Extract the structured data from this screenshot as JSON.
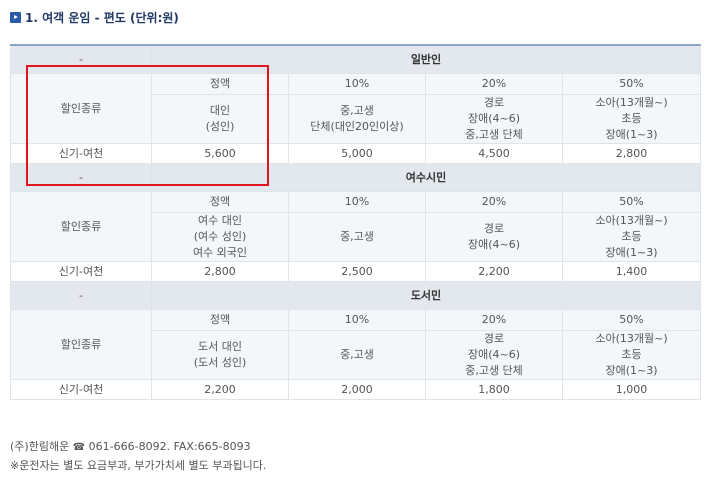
{
  "title": "1. 여객 운임 - 편도 (단위:원)",
  "route_label": "신기-여천",
  "kind_label": "할인종류",
  "dash": "-",
  "sections": [
    {
      "group": "일반인",
      "rates": [
        "정액",
        "10%",
        "20%",
        "50%"
      ],
      "kinds": [
        [
          "대인",
          "(성인)"
        ],
        [
          "중,고생",
          "단체(대인20인이상)"
        ],
        [
          "경로",
          "장애(4~6)",
          "중,고생 단체"
        ],
        [
          "소아(13개월~)",
          "초등",
          "장애(1~3)"
        ]
      ],
      "prices": [
        "5,600",
        "5,000",
        "4,500",
        "2,800"
      ]
    },
    {
      "group": "여수시민",
      "rates": [
        "정액",
        "10%",
        "20%",
        "50%"
      ],
      "kinds": [
        [
          "여수 대인",
          "(여수 성인)",
          "여수 외국인"
        ],
        [
          "중,고생"
        ],
        [
          "경로",
          "장애(4~6)"
        ],
        [
          "소아(13개월~)",
          "초등",
          "장애(1~3)"
        ]
      ],
      "prices": [
        "2,800",
        "2,500",
        "2,200",
        "1,400"
      ]
    },
    {
      "group": "도서민",
      "rates": [
        "정액",
        "10%",
        "20%",
        "50%"
      ],
      "kinds": [
        [
          "도서 대인",
          "(도서 성인)"
        ],
        [
          "중,고생"
        ],
        [
          "경로",
          "장애(4~6)",
          "중,고생 단체"
        ],
        [
          "소아(13개월~)",
          "초등",
          "장애(1~3)"
        ]
      ],
      "prices": [
        "2,200",
        "2,000",
        "1,800",
        "1,000"
      ]
    }
  ],
  "footer": {
    "company": "(주)한림해운",
    "phone_icon": "phone-icon",
    "phone": "061-666-8092. FAX:665-8093",
    "note": "※운전자는 별도 요금부과, 부가가치세 별도 부과됩니다."
  },
  "colors": {
    "header_bg": "#e3e8ee",
    "rate_bg": "#f4f7fa",
    "top_border": "#8aa3c7",
    "highlight_box": "#e0161e",
    "title_color": "#223a66"
  }
}
